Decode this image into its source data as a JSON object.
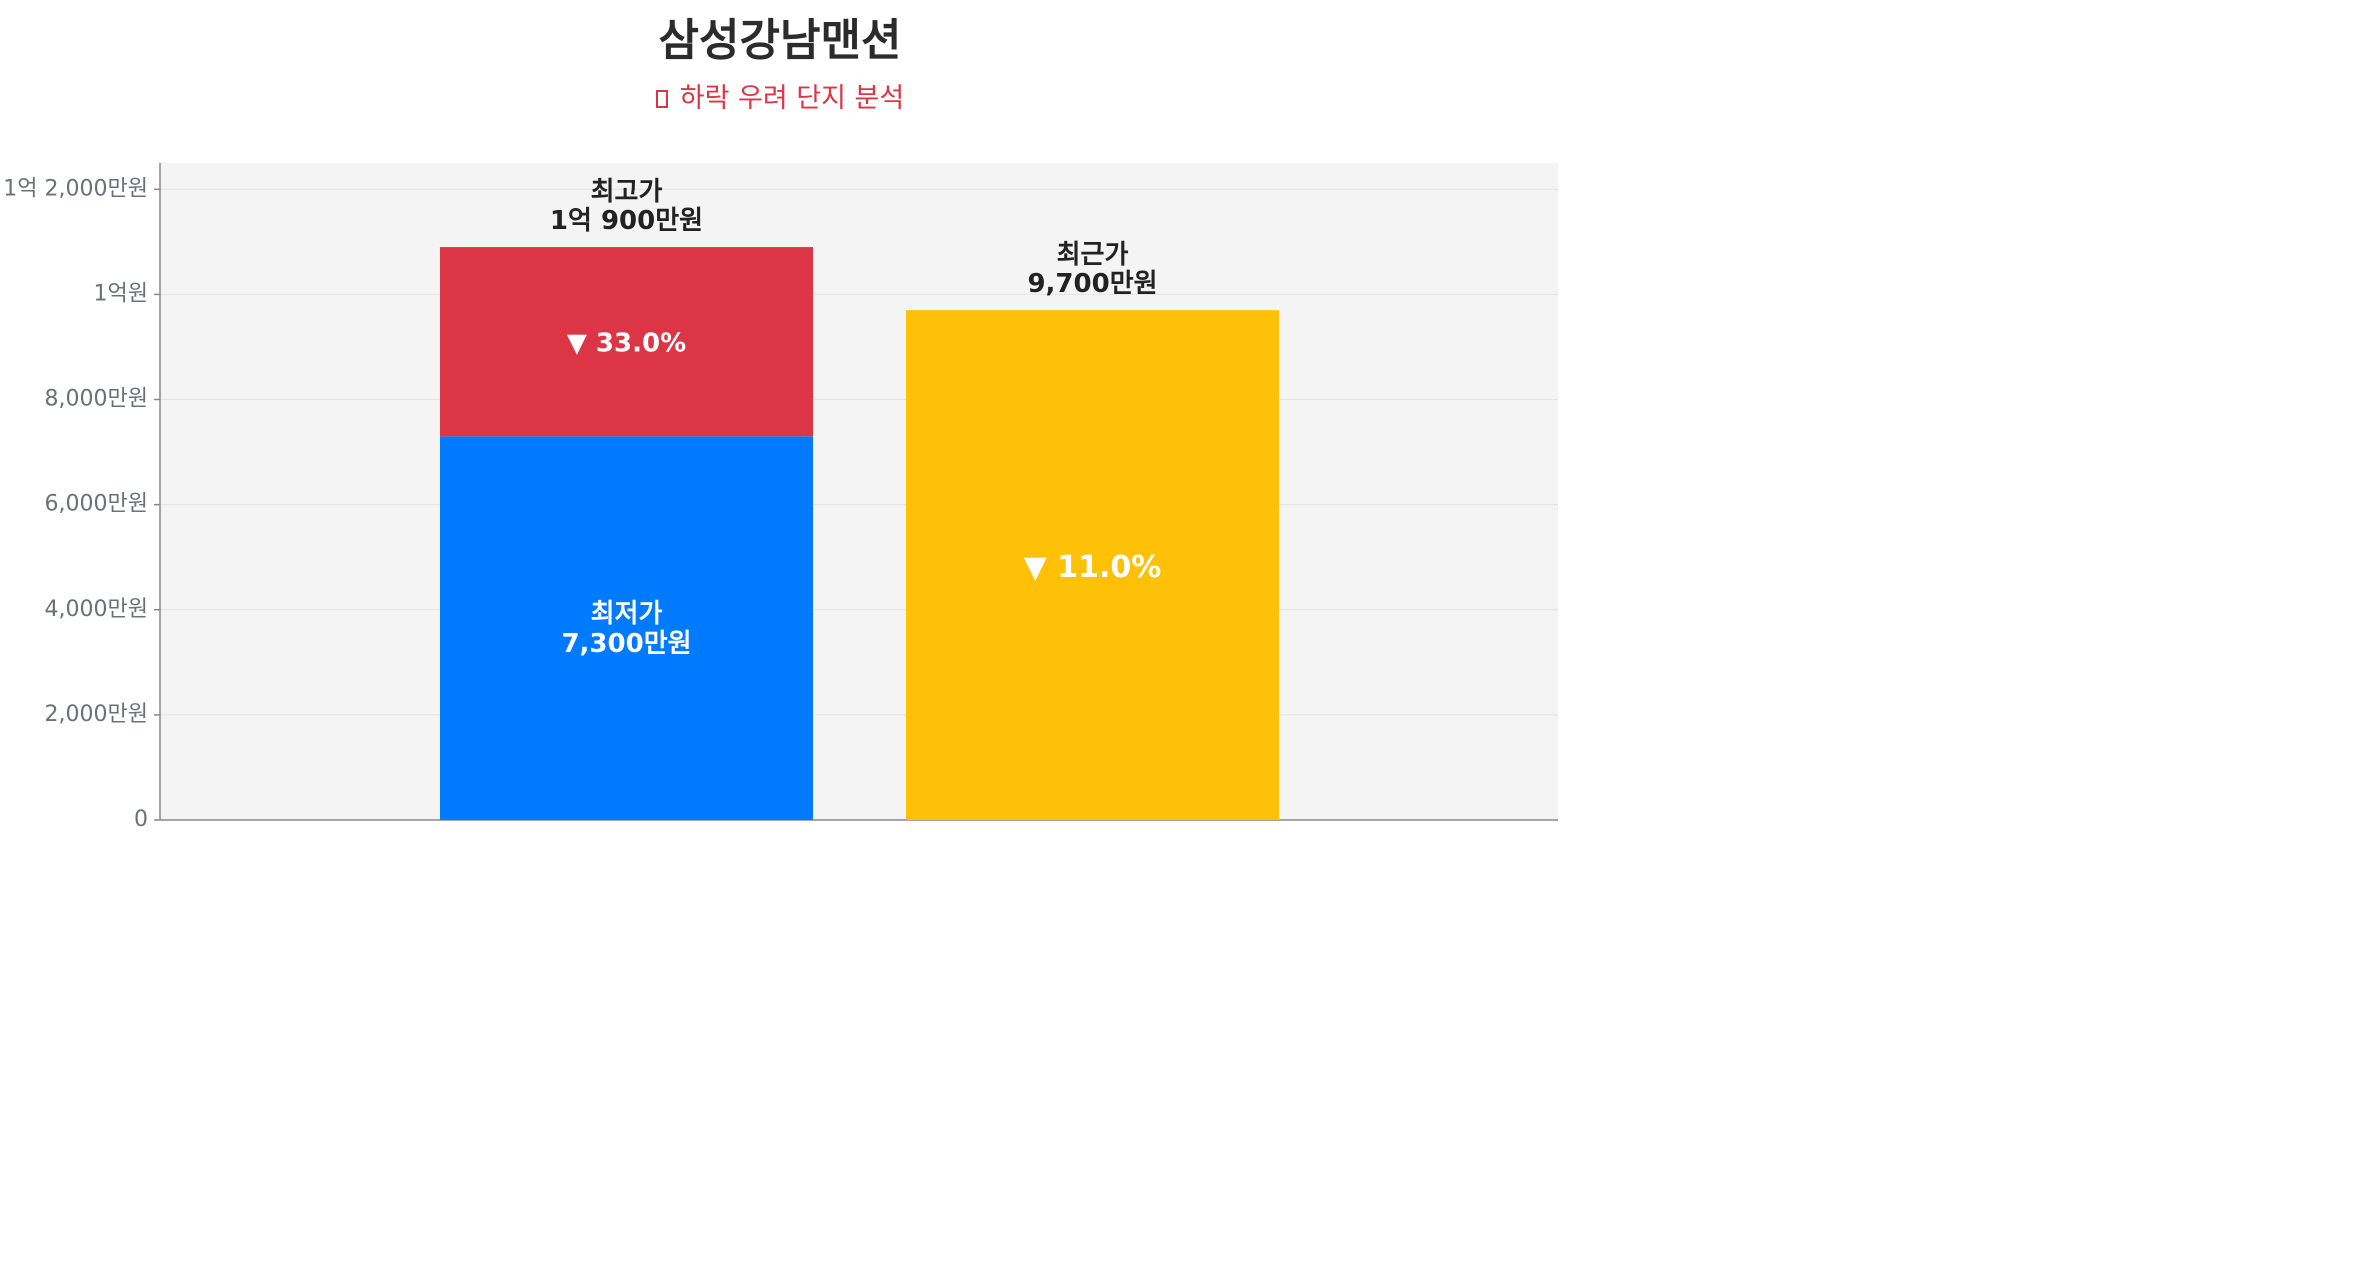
{
  "title": "삼성강남맨션",
  "subtitle": "하락 우려 단지 분석",
  "chart_data": {
    "type": "bar",
    "title": "삼성강남맨션",
    "subtitle": "하락 우려 단지 분석",
    "ylim": [
      0,
      125000000
    ],
    "y_ticks": [
      {
        "value": 0,
        "label": "0"
      },
      {
        "value": 20000000,
        "label": "2,000만원"
      },
      {
        "value": 40000000,
        "label": "4,000만원"
      },
      {
        "value": 60000000,
        "label": "6,000만원"
      },
      {
        "value": 80000000,
        "label": "8,000만원"
      },
      {
        "value": 100000000,
        "label": "1억원"
      },
      {
        "value": 120000000,
        "label": "1억 2,000만원"
      }
    ],
    "grid": true,
    "bars": [
      {
        "stack": [
          {
            "name": "최저가",
            "value": 73000000,
            "value_label": "7,300만원",
            "color": "#007bff"
          },
          {
            "name": "최고가",
            "value": 109000000,
            "value_label": "1억 900만원",
            "color": "#dc3545"
          }
        ],
        "drop_percent": "▼ 33.0%"
      },
      {
        "stack": [
          {
            "name": "최근가",
            "value": 97000000,
            "value_label": "9,700만원",
            "color": "#ffc107"
          }
        ],
        "drop_percent": "▼ 11.0%"
      }
    ],
    "colors": {
      "low": "#007bff",
      "high": "#dc3545",
      "recent": "#ffc107",
      "background": "#f4f4f4"
    }
  }
}
